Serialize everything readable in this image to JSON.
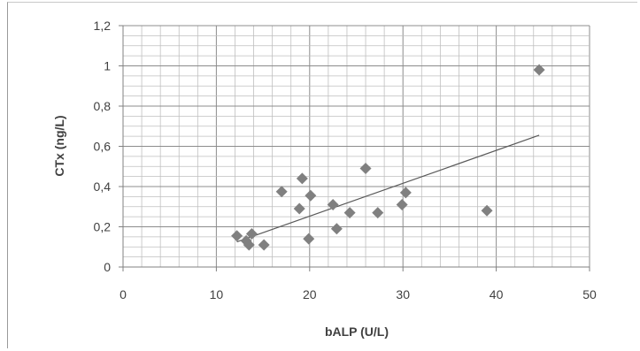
{
  "chart_data": {
    "type": "scatter",
    "xlabel": "bALP (U/L)",
    "ylabel": "CTx (ng/L)",
    "xlim": [
      0,
      50
    ],
    "ylim": [
      0,
      1.2
    ],
    "x_ticks": [
      "0",
      "10",
      "20",
      "30",
      "40",
      "50"
    ],
    "y_ticks": [
      "0",
      "0,2",
      "0,4",
      "0,6",
      "0,8",
      "1",
      "1,2"
    ],
    "grid": true,
    "legend": "none",
    "colors": {
      "marker": "#808080",
      "trendline": "#595959",
      "grid": "#bfbfbf"
    },
    "points": [
      {
        "x": 12.2,
        "y": 0.155
      },
      {
        "x": 13.2,
        "y": 0.13
      },
      {
        "x": 13.5,
        "y": 0.11
      },
      {
        "x": 13.8,
        "y": 0.165
      },
      {
        "x": 15.1,
        "y": 0.11
      },
      {
        "x": 17.0,
        "y": 0.375
      },
      {
        "x": 18.9,
        "y": 0.29
      },
      {
        "x": 19.2,
        "y": 0.44
      },
      {
        "x": 19.9,
        "y": 0.14
      },
      {
        "x": 20.1,
        "y": 0.355
      },
      {
        "x": 22.5,
        "y": 0.31
      },
      {
        "x": 22.9,
        "y": 0.19
      },
      {
        "x": 24.3,
        "y": 0.27
      },
      {
        "x": 26.0,
        "y": 0.49
      },
      {
        "x": 27.3,
        "y": 0.27
      },
      {
        "x": 29.9,
        "y": 0.31
      },
      {
        "x": 30.3,
        "y": 0.37
      },
      {
        "x": 39.0,
        "y": 0.28
      },
      {
        "x": 44.6,
        "y": 0.98
      }
    ],
    "trendline": {
      "type": "linear",
      "x_start": 12.2,
      "y_start": 0.125,
      "x_end": 44.6,
      "y_end": 0.655
    }
  }
}
